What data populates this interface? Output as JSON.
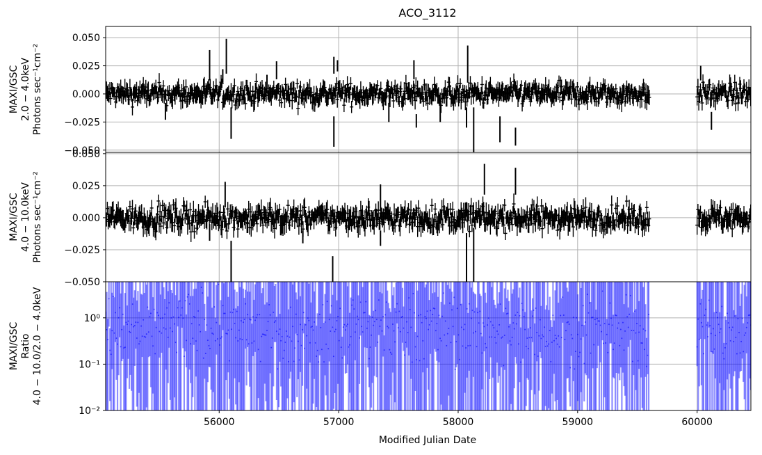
{
  "chart_data": {
    "type": "scatter",
    "title": "ACO_3112",
    "xlabel": "Modified Julian Date",
    "xlim": [
      55050,
      60450
    ],
    "x_ticks": [
      56000,
      57000,
      58000,
      59000,
      60000
    ],
    "x_tick_labels": [
      "56000",
      "57000",
      "58000",
      "59000",
      "60000"
    ],
    "grid": true,
    "panels": [
      {
        "ylabel_lines": [
          "MAXI/GSC",
          "2.0 − 4.0keV",
          "Photons sec⁻¹cm⁻²"
        ],
        "ylim": [
          -0.052,
          0.06
        ],
        "y_ticks": [
          0.05,
          0.025,
          0.0,
          -0.025,
          -0.05
        ],
        "y_tick_labels": [
          "0.050",
          "0.025",
          "0.000",
          "−0.025",
          "−0.050"
        ],
        "color": "#000000",
        "segments": [
          [
            55050,
            59600
          ],
          [
            60000,
            60450
          ]
        ],
        "noise": 0.0045,
        "err": 0.006,
        "spikes": [
          {
            "x": 55920,
            "lo": 0.012,
            "hi": 0.039
          },
          {
            "x": 56060,
            "lo": 0.018,
            "hi": 0.049
          },
          {
            "x": 56030,
            "lo": 0.01,
            "hi": 0.022
          },
          {
            "x": 56100,
            "lo": -0.04,
            "hi": -0.012
          },
          {
            "x": 55550,
            "lo": -0.023,
            "hi": -0.008
          },
          {
            "x": 56480,
            "lo": 0.013,
            "hi": 0.029
          },
          {
            "x": 56400,
            "lo": 0.005,
            "hi": 0.017
          },
          {
            "x": 56960,
            "lo": -0.047,
            "hi": -0.02
          },
          {
            "x": 56960,
            "lo": 0.018,
            "hi": 0.033
          },
          {
            "x": 56990,
            "lo": 0.02,
            "hi": 0.03
          },
          {
            "x": 57420,
            "lo": -0.025,
            "hi": -0.008
          },
          {
            "x": 57630,
            "lo": 0.013,
            "hi": 0.03
          },
          {
            "x": 57650,
            "lo": -0.03,
            "hi": -0.018
          },
          {
            "x": 57850,
            "lo": -0.025,
            "hi": -0.01
          },
          {
            "x": 58080,
            "lo": 0.01,
            "hi": 0.043
          },
          {
            "x": 58070,
            "lo": -0.03,
            "hi": -0.012
          },
          {
            "x": 58130,
            "lo": -0.052,
            "hi": -0.012
          },
          {
            "x": 58350,
            "lo": -0.043,
            "hi": -0.02
          },
          {
            "x": 58480,
            "lo": -0.046,
            "hi": -0.03
          },
          {
            "x": 60030,
            "lo": 0.012,
            "hi": 0.025
          },
          {
            "x": 60120,
            "lo": -0.032,
            "hi": -0.016
          }
        ]
      },
      {
        "ylabel_lines": [
          "MAXI/GSC",
          "4.0 − 10.0keV",
          "Photons sec⁻¹cm⁻²"
        ],
        "ylim": [
          -0.05,
          0.051
        ],
        "y_ticks": [
          0.05,
          0.025,
          0.0,
          -0.025,
          -0.05
        ],
        "y_tick_labels": [
          "0.050",
          "0.025",
          "0.000",
          "−0.025",
          "−0.050"
        ],
        "color": "#000000",
        "segments": [
          [
            55050,
            59600
          ],
          [
            60000,
            60450
          ]
        ],
        "noise": 0.0045,
        "err": 0.006,
        "spikes": [
          {
            "x": 56050,
            "lo": 0.008,
            "hi": 0.028
          },
          {
            "x": 56100,
            "lo": -0.05,
            "hi": -0.018
          },
          {
            "x": 55920,
            "lo": -0.018,
            "hi": -0.005
          },
          {
            "x": 56700,
            "lo": -0.02,
            "hi": -0.01
          },
          {
            "x": 56950,
            "lo": -0.05,
            "hi": -0.03
          },
          {
            "x": 57350,
            "lo": 0.005,
            "hi": 0.026
          },
          {
            "x": 57350,
            "lo": -0.022,
            "hi": -0.01
          },
          {
            "x": 58070,
            "lo": -0.05,
            "hi": -0.012
          },
          {
            "x": 58130,
            "lo": -0.05,
            "hi": -0.008
          },
          {
            "x": 58220,
            "lo": 0.018,
            "hi": 0.042
          },
          {
            "x": 58480,
            "lo": 0.018,
            "hi": 0.039
          }
        ]
      },
      {
        "ylabel_lines": [
          "MAXI/GSC",
          "Ratio",
          "4.0 − 10.0/2.0 − 4.0keV"
        ],
        "yscale": "log",
        "ylim": [
          0.01,
          6
        ],
        "y_ticks": [
          1,
          0.1,
          0.01
        ],
        "y_tick_labels": [
          "10⁰",
          "10⁻¹",
          "10⁻²"
        ],
        "color": "#0000ff",
        "segments": [
          [
            55050,
            59600
          ],
          [
            60000,
            60450
          ]
        ]
      }
    ]
  }
}
